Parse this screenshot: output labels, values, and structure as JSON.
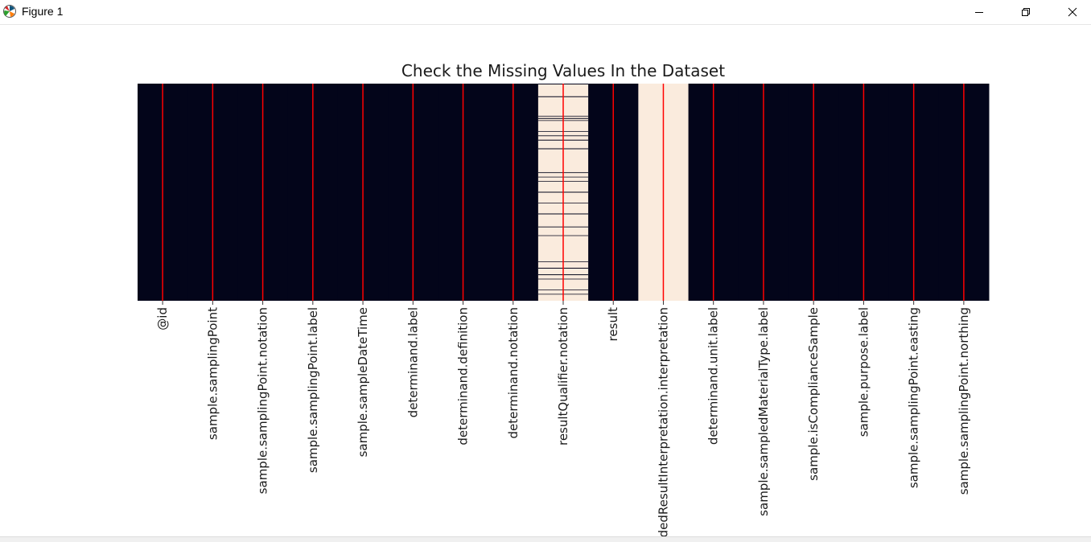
{
  "window": {
    "title": "Figure 1",
    "controls": {
      "minimize_icon": "minimize-icon",
      "restore_icon": "restore-icon",
      "close_icon": "close-icon"
    }
  },
  "chart_data": {
    "type": "heatmap",
    "title": "Check the Missing Values In the Dataset",
    "xlabel": "",
    "ylabel": "",
    "colorbar": false,
    "colors": {
      "present": "#03051a",
      "missing": "#faebdd",
      "column_line": "#ff0000",
      "row_line": "#03051a"
    },
    "columns": [
      "@id",
      "sample.samplingPoint",
      "sample.samplingPoint.notation",
      "sample.samplingPoint.label",
      "sample.sampleDateTime",
      "determinand.label",
      "determinand.definition",
      "determinand.notation",
      "resultQualifier.notation",
      "result",
      "codedResultInterpretation.interpretation",
      "determinand.unit.label",
      "sample.sampledMaterialType.label",
      "sample.isComplianceSample",
      "sample.purpose.label",
      "sample.samplingPoint.easting",
      "sample.samplingPoint.northing"
    ],
    "missing_fraction": [
      0,
      0,
      0,
      0,
      0,
      0,
      0,
      0,
      0.93,
      0,
      1,
      0,
      0,
      0,
      0,
      0,
      0
    ],
    "present_rows": {
      "resultQualifier.notation": [
        0.002,
        0.06,
        0.16,
        0.26,
        0.3,
        0.5,
        0.6,
        0.85,
        0.88
      ]
    }
  }
}
